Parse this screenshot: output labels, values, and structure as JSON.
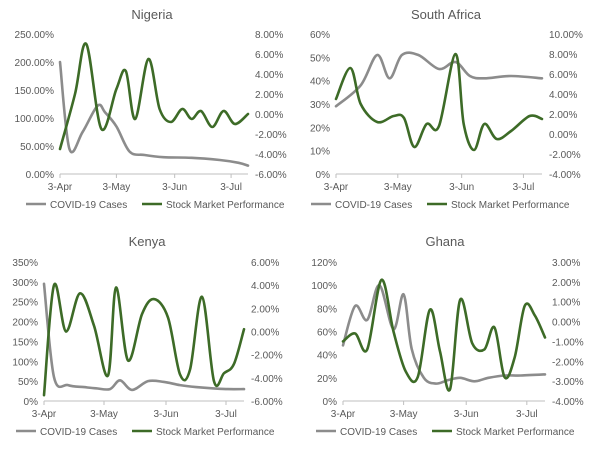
{
  "colors": {
    "covid": "#8c8c8c",
    "market": "#3d6b27",
    "axis": "#bfbfbf",
    "text": "#595959"
  },
  "chart_data": [
    {
      "type": "line",
      "title": "Nigeria",
      "x_labels": [
        "3-Apr",
        "3-May",
        "3-Jun",
        "3-Jul"
      ],
      "x_range": [
        0,
        100
      ],
      "x_ticks": [
        0,
        30,
        61,
        91
      ],
      "y_left": {
        "min": 0,
        "max": 250,
        "step": 50,
        "ticks": [
          "0.00%",
          "50.00%",
          "100.00%",
          "150.00%",
          "200.00%",
          "250.00%"
        ]
      },
      "y_right": {
        "min": -6,
        "max": 8,
        "step": 2,
        "ticks": [
          "-6.00%",
          "-4.00%",
          "-2.00%",
          "0.00%",
          "2.00%",
          "4.00%",
          "6.00%",
          "8.00%"
        ]
      },
      "series": [
        {
          "name": "COVID-19 Cases",
          "axis": "left",
          "color": "covid",
          "x": [
            0,
            5,
            12,
            20,
            24,
            30,
            37,
            45,
            55,
            70,
            85,
            95,
            100
          ],
          "y": [
            200,
            45,
            75,
            122,
            110,
            85,
            40,
            34,
            30,
            29,
            25,
            20,
            15
          ]
        },
        {
          "name": "Stock Market Performance",
          "axis": "right",
          "color": "market",
          "x": [
            0,
            8,
            14,
            22,
            30,
            35,
            40,
            47,
            53,
            59,
            65,
            70,
            75,
            81,
            87,
            93,
            100
          ],
          "y": [
            -3.5,
            2,
            7,
            -1.5,
            2.5,
            4.3,
            -0.5,
            5.5,
            0.5,
            -0.8,
            0.5,
            -0.5,
            0.3,
            -1.3,
            0.3,
            -1,
            0
          ]
        }
      ]
    },
    {
      "type": "line",
      "title": "South Africa",
      "x_labels": [
        "3-Apr",
        "3-May",
        "3-Jun",
        "3-Jul"
      ],
      "x_range": [
        0,
        100
      ],
      "x_ticks": [
        0,
        30,
        61,
        91
      ],
      "y_left": {
        "min": 0,
        "max": 60,
        "step": 10,
        "ticks": [
          "0%",
          "10%",
          "20%",
          "30%",
          "40%",
          "50%",
          "60%"
        ]
      },
      "y_right": {
        "min": -4,
        "max": 10,
        "step": 2,
        "ticks": [
          "-4.00%",
          "-2.00%",
          "0.00%",
          "2.00%",
          "4.00%",
          "6.00%",
          "8.00%",
          "10.00%"
        ]
      },
      "series": [
        {
          "name": "COVID-19 Cases",
          "axis": "left",
          "color": "covid",
          "x": [
            0,
            12,
            20,
            26,
            32,
            40,
            50,
            58,
            65,
            72,
            85,
            100
          ],
          "y": [
            29,
            38,
            51,
            41,
            51,
            51,
            45,
            48,
            42,
            41,
            42,
            41
          ]
        },
        {
          "name": "Stock Market Performance",
          "axis": "right",
          "color": "market",
          "x": [
            0,
            7,
            12,
            20,
            28,
            33,
            38,
            44,
            50,
            58,
            62,
            67,
            72,
            78,
            85,
            94,
            100
          ],
          "y": [
            3.5,
            6.6,
            3,
            1.2,
            1.8,
            1.6,
            -1.3,
            1,
            0.8,
            8,
            1,
            -1.6,
            1,
            -0.5,
            0.3,
            1.8,
            1.5
          ]
        }
      ]
    },
    {
      "type": "line",
      "title": "Kenya",
      "x_labels": [
        "3-Apr",
        "3-May",
        "3-Jun",
        "3-Jul"
      ],
      "x_range": [
        0,
        100
      ],
      "x_ticks": [
        0,
        30,
        61,
        91
      ],
      "y_left": {
        "min": 0,
        "max": 350,
        "step": 50,
        "ticks": [
          "0%",
          "50%",
          "100%",
          "150%",
          "200%",
          "250%",
          "300%",
          "350%"
        ]
      },
      "y_right": {
        "min": -6,
        "max": 6,
        "step": 2,
        "ticks": [
          "-6.00%",
          "-4.00%",
          "-2.00%",
          "0.00%",
          "2.00%",
          "4.00%",
          "6.00%"
        ]
      },
      "series": [
        {
          "name": "COVID-19 Cases",
          "axis": "left",
          "color": "covid",
          "x": [
            0,
            5,
            12,
            20,
            26,
            33,
            38,
            44,
            52,
            60,
            68,
            76,
            84,
            92,
            100
          ],
          "y": [
            295,
            60,
            40,
            35,
            32,
            30,
            52,
            28,
            50,
            48,
            40,
            35,
            32,
            30,
            30
          ]
        },
        {
          "name": "Stock Market Performance",
          "axis": "right",
          "color": "market",
          "x": [
            0,
            5,
            11,
            18,
            25,
            32,
            36,
            42,
            49,
            55,
            62,
            68,
            73,
            79,
            85,
            90,
            95,
            100
          ],
          "y": [
            -5.5,
            4,
            0,
            3.3,
            0.5,
            -3.8,
            3.8,
            -2.5,
            1.5,
            2.8,
            1.2,
            -3.7,
            -3.3,
            3,
            -4.3,
            -3.6,
            -2.8,
            0.2
          ]
        }
      ]
    },
    {
      "type": "line",
      "title": "Ghana",
      "x_labels": [
        "3-Apr",
        "3-May",
        "3-Jun",
        "3-Jul"
      ],
      "x_range": [
        0,
        100
      ],
      "x_ticks": [
        0,
        30,
        61,
        91
      ],
      "y_left": {
        "min": 0,
        "max": 120,
        "step": 20,
        "ticks": [
          "0%",
          "20%",
          "40%",
          "60%",
          "80%",
          "100%",
          "120%"
        ]
      },
      "y_right": {
        "min": -4,
        "max": 3,
        "step": 1,
        "ticks": [
          "-4.00%",
          "-3.00%",
          "-2.00%",
          "-1.00%",
          "0.00%",
          "1.00%",
          "2.00%",
          "3.00%"
        ]
      },
      "series": [
        {
          "name": "COVID-19 Cases",
          "axis": "left",
          "color": "covid",
          "x": [
            0,
            6,
            12,
            18,
            25,
            30,
            34,
            40,
            46,
            52,
            58,
            65,
            72,
            80,
            88,
            100
          ],
          "y": [
            48,
            82,
            70,
            100,
            62,
            92,
            45,
            20,
            15,
            18,
            20,
            17,
            20,
            22,
            22,
            23
          ]
        },
        {
          "name": "Stock Market Performance",
          "axis": "right",
          "color": "market",
          "x": [
            0,
            6,
            12,
            19,
            25,
            31,
            37,
            43,
            48,
            53,
            58,
            64,
            70,
            75,
            80,
            85,
            90,
            95,
            100
          ],
          "y": [
            -1,
            -0.6,
            -1.4,
            2.1,
            -0.5,
            -2.5,
            -2.8,
            0.6,
            -1.5,
            -3.4,
            1.1,
            -1.1,
            -1.4,
            -0.3,
            -2.8,
            -1.8,
            0.8,
            0.3,
            -0.8
          ]
        }
      ]
    }
  ]
}
